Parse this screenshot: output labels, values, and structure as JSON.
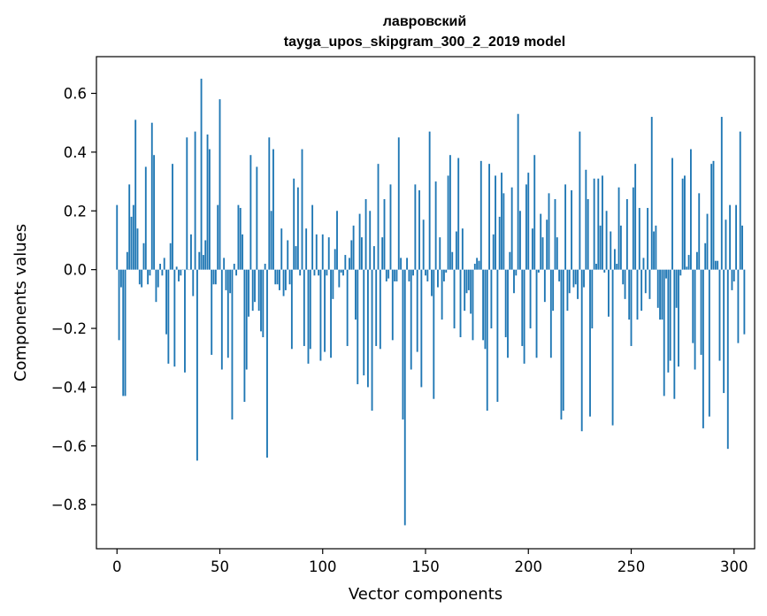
{
  "chart_data": {
    "type": "bar",
    "title": "лавровский",
    "subtitle": "tayga_upos_skipgram_300_2_2019 model",
    "xlabel": "Vector components",
    "ylabel": "Components values",
    "xlim": [
      -10,
      310
    ],
    "ylim": [
      -0.95,
      0.725
    ],
    "x_ticks": [
      0,
      50,
      100,
      150,
      200,
      250,
      300
    ],
    "y_ticks": [
      -0.8,
      -0.6,
      -0.4,
      -0.2,
      0.0,
      0.2,
      0.4,
      0.6
    ],
    "y_tick_labels": [
      "−0.8",
      "−0.6",
      "−0.4",
      "−0.2",
      "0.0",
      "0.2",
      "0.4",
      "0.6"
    ],
    "bar_color": "#1f77b4",
    "x_start": 0,
    "values": [
      0.22,
      -0.24,
      -0.06,
      -0.43,
      -0.43,
      0.06,
      0.29,
      0.18,
      0.22,
      0.51,
      0.14,
      -0.05,
      -0.06,
      0.09,
      0.35,
      -0.05,
      -0.02,
      0.5,
      0.39,
      -0.11,
      -0.06,
      0.02,
      -0.02,
      0.04,
      -0.22,
      -0.32,
      0.09,
      0.36,
      -0.33,
      0.01,
      -0.04,
      -0.02,
      0.0,
      -0.35,
      0.45,
      0.0,
      0.12,
      -0.09,
      0.47,
      -0.65,
      0.06,
      0.65,
      0.05,
      0.1,
      0.46,
      0.41,
      -0.29,
      -0.05,
      -0.05,
      0.22,
      0.58,
      -0.34,
      0.04,
      -0.07,
      -0.3,
      -0.08,
      -0.51,
      0.02,
      -0.02,
      0.22,
      0.21,
      0.12,
      -0.45,
      -0.34,
      -0.16,
      0.39,
      -0.14,
      -0.11,
      0.35,
      -0.14,
      -0.21,
      -0.23,
      0.02,
      -0.64,
      0.45,
      0.2,
      0.41,
      -0.05,
      -0.05,
      -0.07,
      0.14,
      -0.09,
      -0.07,
      0.1,
      -0.05,
      -0.27,
      0.31,
      0.08,
      0.28,
      -0.02,
      0.41,
      -0.26,
      0.14,
      -0.32,
      -0.27,
      0.22,
      -0.02,
      0.12,
      -0.02,
      -0.31,
      0.12,
      -0.28,
      -0.02,
      0.11,
      -0.3,
      -0.1,
      0.07,
      0.2,
      -0.06,
      -0.01,
      -0.02,
      0.05,
      -0.26,
      0.04,
      0.1,
      0.15,
      -0.17,
      -0.39,
      0.19,
      0.11,
      -0.36,
      0.24,
      -0.4,
      0.2,
      -0.48,
      0.08,
      -0.26,
      0.36,
      -0.27,
      0.11,
      0.24,
      -0.04,
      -0.03,
      0.29,
      -0.24,
      -0.04,
      -0.04,
      0.45,
      0.04,
      -0.51,
      -0.87,
      0.04,
      -0.04,
      -0.34,
      -0.02,
      0.29,
      -0.28,
      0.27,
      -0.4,
      0.17,
      -0.02,
      -0.04,
      0.47,
      -0.09,
      -0.44,
      0.3,
      -0.06,
      0.11,
      -0.17,
      -0.04,
      -0.01,
      0.32,
      0.39,
      0.06,
      -0.2,
      0.13,
      0.38,
      -0.23,
      0.14,
      -0.14,
      -0.08,
      -0.07,
      -0.15,
      -0.24,
      0.02,
      0.04,
      0.03,
      0.37,
      -0.24,
      -0.27,
      -0.48,
      0.36,
      -0.2,
      0.12,
      0.32,
      -0.45,
      0.18,
      0.33,
      0.26,
      -0.23,
      -0.3,
      0.06,
      0.28,
      -0.08,
      -0.02,
      0.53,
      0.2,
      -0.26,
      -0.32,
      0.29,
      0.33,
      -0.2,
      0.14,
      0.39,
      -0.3,
      -0.01,
      0.19,
      0.11,
      -0.11,
      0.17,
      0.26,
      -0.3,
      -0.14,
      0.24,
      0.11,
      -0.04,
      -0.51,
      -0.48,
      0.29,
      -0.14,
      -0.08,
      0.27,
      -0.06,
      -0.05,
      -0.1,
      0.47,
      -0.55,
      -0.06,
      0.34,
      0.24,
      -0.5,
      -0.2,
      0.31,
      0.02,
      0.31,
      0.15,
      0.32,
      -0.01,
      0.2,
      -0.16,
      0.13,
      -0.53,
      0.07,
      0.02,
      0.28,
      0.15,
      -0.05,
      -0.1,
      0.24,
      -0.17,
      -0.26,
      0.28,
      0.36,
      -0.17,
      0.21,
      -0.14,
      0.04,
      -0.08,
      0.21,
      -0.1,
      0.52,
      0.13,
      0.15,
      -0.13,
      -0.17,
      -0.17,
      -0.43,
      -0.03,
      -0.35,
      -0.31,
      0.38,
      -0.44,
      -0.13,
      -0.33,
      -0.02,
      0.31,
      0.32,
      0.01,
      0.05,
      0.41,
      -0.25,
      -0.34,
      0.06,
      0.26,
      -0.29,
      -0.54,
      0.09,
      0.19,
      -0.5,
      0.36,
      0.37,
      0.03,
      0.03,
      -0.31,
      0.52,
      -0.42,
      0.17,
      -0.61,
      0.22,
      -0.07,
      -0.04,
      0.22,
      -0.25,
      0.47,
      0.15,
      -0.22
    ]
  }
}
